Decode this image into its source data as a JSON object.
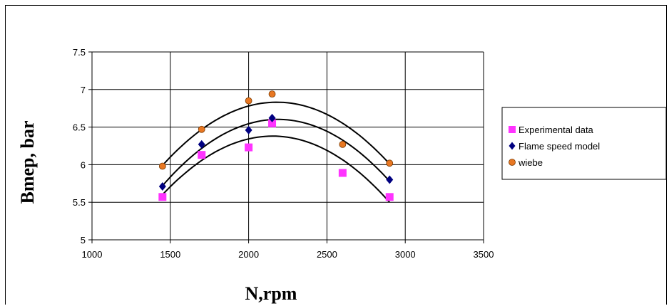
{
  "chart_data": {
    "type": "scatter",
    "title": "",
    "xlabel": "N,rpm",
    "ylabel": "Bmep, bar",
    "xlim": [
      1000,
      3500
    ],
    "ylim": [
      5,
      7.5
    ],
    "x_ticks": [
      "1000",
      "1500",
      "2000",
      "2500",
      "3000",
      "3500"
    ],
    "y_ticks": [
      "5",
      "5.5",
      "6",
      "6.5",
      "7",
      "7.5"
    ],
    "grid": true,
    "legend_position": "right",
    "series": [
      {
        "name": "Experimental data",
        "marker": "square",
        "color": "#ff33ff",
        "x": [
          1450,
          1700,
          2000,
          2150,
          2600,
          2900
        ],
        "y": [
          5.57,
          6.13,
          6.23,
          6.55,
          5.89,
          5.57
        ]
      },
      {
        "name": "Flame speed model",
        "marker": "diamond",
        "color": "#000080",
        "x": [
          1450,
          1700,
          2000,
          2150,
          2900
        ],
        "y": [
          5.71,
          6.27,
          6.46,
          6.62,
          5.8
        ]
      },
      {
        "name": "wiebe",
        "marker": "circle",
        "color": "#e87722",
        "x": [
          1450,
          1700,
          2000,
          2150,
          2600,
          2900
        ],
        "y": [
          5.98,
          6.47,
          6.85,
          6.94,
          6.27,
          6.02
        ]
      }
    ],
    "trendlines": [
      {
        "series": "Experimental data",
        "type": "quadratic",
        "x_range": [
          1450,
          2900
        ],
        "points": [
          [
            1450,
            5.6
          ],
          [
            2150,
            6.38
          ],
          [
            2900,
            5.5
          ]
        ]
      },
      {
        "series": "Flame speed model",
        "type": "quadratic",
        "x_range": [
          1450,
          2900
        ],
        "points": [
          [
            1450,
            5.72
          ],
          [
            2150,
            6.6
          ],
          [
            2900,
            5.78
          ]
        ]
      },
      {
        "series": "wiebe",
        "type": "quadratic",
        "x_range": [
          1450,
          2900
        ],
        "points": [
          [
            1450,
            5.99
          ],
          [
            2150,
            6.83
          ],
          [
            2900,
            6.01
          ]
        ]
      }
    ]
  }
}
